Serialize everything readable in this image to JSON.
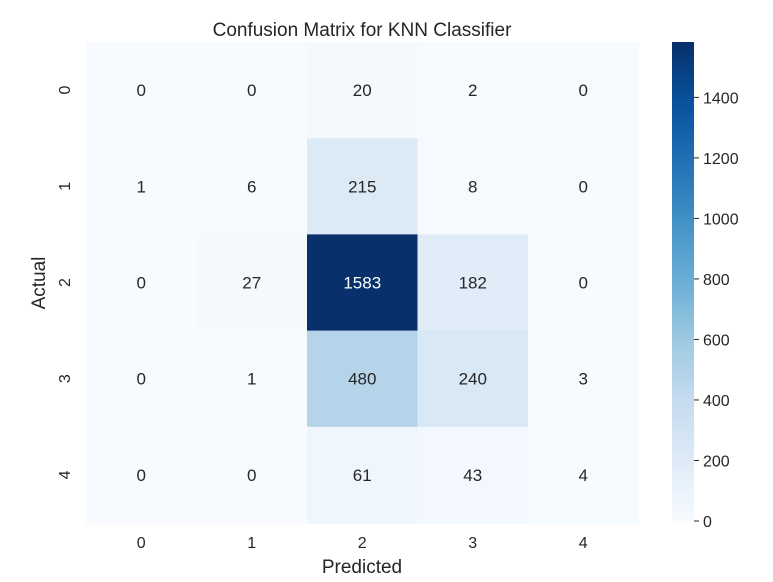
{
  "chart_data": {
    "type": "heatmap",
    "title": "Confusion Matrix for KNN Classifier",
    "xlabel": "Predicted",
    "ylabel": "Actual",
    "x_categories": [
      "0",
      "1",
      "2",
      "3",
      "4"
    ],
    "y_categories": [
      "0",
      "1",
      "2",
      "3",
      "4"
    ],
    "values": [
      [
        0,
        0,
        20,
        2,
        0
      ],
      [
        1,
        6,
        215,
        8,
        0
      ],
      [
        0,
        27,
        1583,
        182,
        0
      ],
      [
        0,
        1,
        480,
        240,
        3
      ],
      [
        0,
        0,
        61,
        43,
        4
      ]
    ],
    "colorbar": {
      "min": 0,
      "max": 1583,
      "ticks": [
        0,
        200,
        400,
        600,
        800,
        1000,
        1200,
        1400
      ],
      "colormap": "Blues"
    },
    "grid": false,
    "legend": "colorbar-right"
  }
}
